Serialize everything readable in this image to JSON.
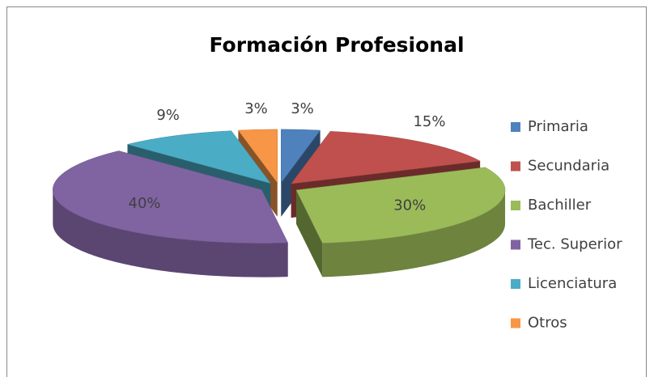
{
  "chart_data": {
    "type": "pie3d",
    "title": "Formación Profesional",
    "categories": [
      "Primaria",
      "Secundaria",
      "Bachiller",
      "Tec. Superior",
      "Licenciatura",
      "Otros"
    ],
    "values": [
      3,
      15,
      30,
      40,
      9,
      3
    ],
    "value_labels": [
      "3%",
      "15%",
      "30%",
      "40%",
      "9%",
      "3%"
    ],
    "colors": [
      "#4F81BD",
      "#C0504D",
      "#9BBB59",
      "#8064A2",
      "#4BACC6",
      "#F79646"
    ],
    "legend": "right"
  }
}
